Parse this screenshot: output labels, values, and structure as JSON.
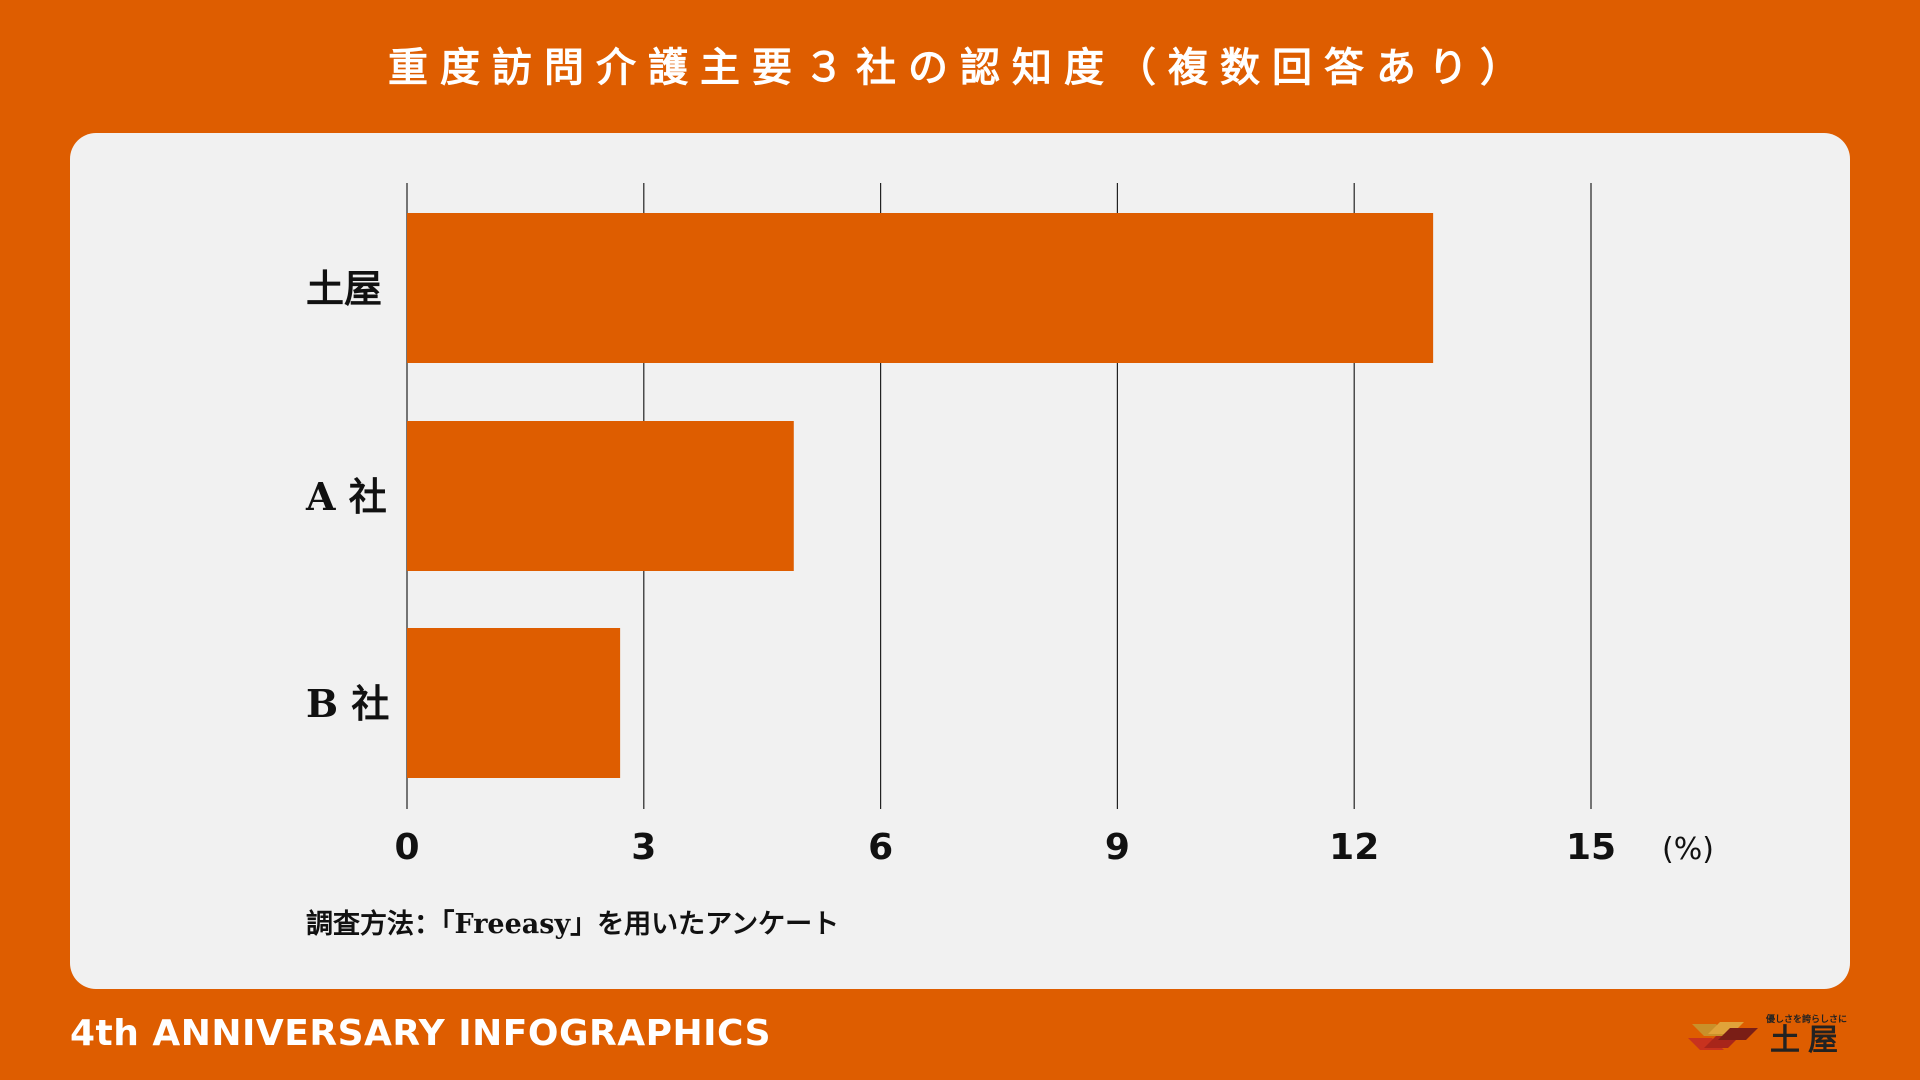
{
  "title": "重度訪問介護主要３社の認知度（複数回答あり）",
  "footer": {
    "left": "4th ANNIVERSARY INFOGRAPHICS",
    "logo_tagline": "優しさを誇らしさに",
    "logo_name": "土屋"
  },
  "colors": {
    "background": "#DE5D00",
    "card": "#F1F1F1",
    "bar": "#DE5D00",
    "text": "#111111"
  },
  "chart_data": {
    "type": "bar",
    "orientation": "horizontal",
    "categories": [
      "土屋",
      "A 社",
      "B 社"
    ],
    "values": [
      13.0,
      4.9,
      2.7
    ],
    "xlim": [
      0,
      15
    ],
    "xticks": [
      "0",
      "3",
      "6",
      "9",
      "12",
      "15"
    ],
    "x_unit": "(%)",
    "grid": true,
    "note": "調査方法：「Freeasy」を用いたアンケート"
  }
}
